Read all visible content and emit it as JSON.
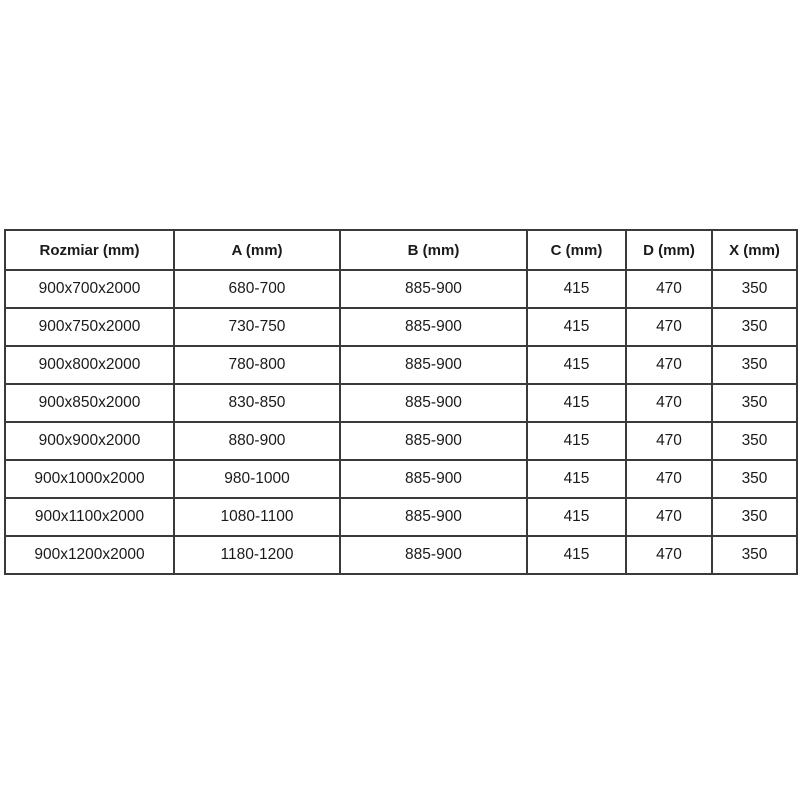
{
  "page": {
    "background_color": "#ffffff",
    "text_color": "#1a1a1a",
    "border_color": "#3a3a3a"
  },
  "table": {
    "columns": [
      {
        "label": "Rozmiar (mm)"
      },
      {
        "label": "A (mm)"
      },
      {
        "label": "B (mm)"
      },
      {
        "label": "C (mm)"
      },
      {
        "label": "D (mm)"
      },
      {
        "label": "X (mm)"
      }
    ],
    "rows": [
      {
        "rozmiar": "900x700x2000",
        "a": "680-700",
        "b": "885-900",
        "c": "415",
        "d": "470",
        "x": "350"
      },
      {
        "rozmiar": "900x750x2000",
        "a": "730-750",
        "b": "885-900",
        "c": "415",
        "d": "470",
        "x": "350"
      },
      {
        "rozmiar": "900x800x2000",
        "a": "780-800",
        "b": "885-900",
        "c": "415",
        "d": "470",
        "x": "350"
      },
      {
        "rozmiar": "900x850x2000",
        "a": "830-850",
        "b": "885-900",
        "c": "415",
        "d": "470",
        "x": "350"
      },
      {
        "rozmiar": "900x900x2000",
        "a": "880-900",
        "b": "885-900",
        "c": "415",
        "d": "470",
        "x": "350"
      },
      {
        "rozmiar": "900x1000x2000",
        "a": "980-1000",
        "b": "885-900",
        "c": "415",
        "d": "470",
        "x": "350"
      },
      {
        "rozmiar": "900x1100x2000",
        "a": "1080-1100",
        "b": "885-900",
        "c": "415",
        "d": "470",
        "x": "350"
      },
      {
        "rozmiar": "900x1200x2000",
        "a": "1180-1200",
        "b": "885-900",
        "c": "415",
        "d": "470",
        "x": "350"
      }
    ],
    "cell_order": [
      "rozmiar",
      "a",
      "b",
      "c",
      "d",
      "x"
    ]
  }
}
